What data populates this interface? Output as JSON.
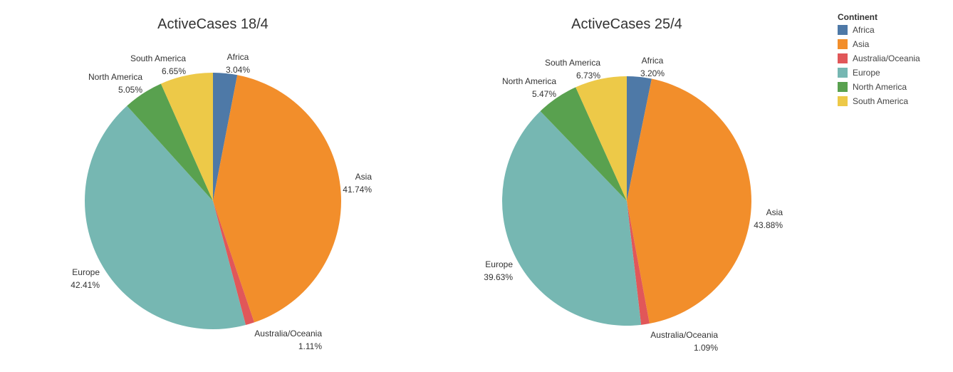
{
  "legend": {
    "title": "Continent",
    "items": [
      {
        "label": "Africa",
        "color": "#4e79a7"
      },
      {
        "label": "Asia",
        "color": "#f28e2b"
      },
      {
        "label": "Australia/Oceania",
        "color": "#e15759"
      },
      {
        "label": "Europe",
        "color": "#76b7b2"
      },
      {
        "label": "North America",
        "color": "#59a14f"
      },
      {
        "label": "South America",
        "color": "#edc948"
      }
    ]
  },
  "chart_data": [
    {
      "type": "pie",
      "title": "ActiveCases 18/4",
      "slices": [
        {
          "label": "Africa",
          "value": 3.04,
          "text": "3.04%",
          "color": "#4e79a7"
        },
        {
          "label": "Asia",
          "value": 41.74,
          "text": "41.74%",
          "color": "#f28e2b"
        },
        {
          "label": "Australia/Oceania",
          "value": 1.11,
          "text": "1.11%",
          "color": "#e15759"
        },
        {
          "label": "Europe",
          "value": 42.41,
          "text": "42.41%",
          "color": "#76b7b2"
        },
        {
          "label": "North America",
          "value": 5.05,
          "text": "5.05%",
          "color": "#59a14f"
        },
        {
          "label": "South America",
          "value": 6.65,
          "text": "6.65%",
          "color": "#edc948"
        }
      ]
    },
    {
      "type": "pie",
      "title": "ActiveCases 25/4",
      "slices": [
        {
          "label": "Africa",
          "value": 3.2,
          "text": "3.20%",
          "color": "#4e79a7"
        },
        {
          "label": "Asia",
          "value": 43.88,
          "text": "43.88%",
          "color": "#f28e2b"
        },
        {
          "label": "Australia/Oceania",
          "value": 1.09,
          "text": "1.09%",
          "color": "#e15759"
        },
        {
          "label": "Europe",
          "value": 39.63,
          "text": "39.63%",
          "color": "#76b7b2"
        },
        {
          "label": "North America",
          "value": 5.47,
          "text": "5.47%",
          "color": "#59a14f"
        },
        {
          "label": "South America",
          "value": 6.73,
          "text": "6.73%",
          "color": "#edc948"
        }
      ]
    }
  ]
}
